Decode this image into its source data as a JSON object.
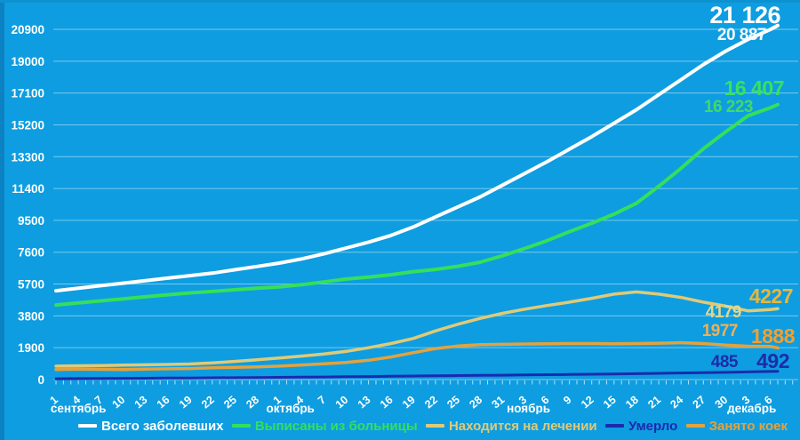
{
  "chart_data": {
    "type": "line",
    "title": "",
    "background_color": "#0e9de0",
    "gridlines": true,
    "legend_position": "bottom",
    "y_ticks": [
      0,
      1900,
      3800,
      5700,
      7600,
      9500,
      11400,
      13300,
      15200,
      17100,
      19000,
      20900
    ],
    "y_range": [
      0,
      20900
    ],
    "x_axis": {
      "tick_days": [
        {
          "day": 0,
          "label": "1"
        },
        {
          "day": 3,
          "label": "4"
        },
        {
          "day": 6,
          "label": "7"
        },
        {
          "day": 9,
          "label": "10"
        },
        {
          "day": 12,
          "label": "13"
        },
        {
          "day": 15,
          "label": "16"
        },
        {
          "day": 18,
          "label": "19"
        },
        {
          "day": 21,
          "label": "22"
        },
        {
          "day": 24,
          "label": "25"
        },
        {
          "day": 27,
          "label": "28"
        },
        {
          "day": 30,
          "label": "1"
        },
        {
          "day": 33,
          "label": "4"
        },
        {
          "day": 36,
          "label": "7"
        },
        {
          "day": 39,
          "label": "10"
        },
        {
          "day": 42,
          "label": "13"
        },
        {
          "day": 45,
          "label": "16"
        },
        {
          "day": 48,
          "label": "19"
        },
        {
          "day": 51,
          "label": "22"
        },
        {
          "day": 54,
          "label": "25"
        },
        {
          "day": 57,
          "label": "28"
        },
        {
          "day": 60,
          "label": "31"
        },
        {
          "day": 63,
          "label": "3"
        },
        {
          "day": 66,
          "label": "6"
        },
        {
          "day": 69,
          "label": "9"
        },
        {
          "day": 72,
          "label": "12"
        },
        {
          "day": 75,
          "label": "15"
        },
        {
          "day": 78,
          "label": "18"
        },
        {
          "day": 81,
          "label": "21"
        },
        {
          "day": 84,
          "label": "24"
        },
        {
          "day": 87,
          "label": "27"
        },
        {
          "day": 90,
          "label": "30"
        },
        {
          "day": 93,
          "label": "3"
        },
        {
          "day": 96,
          "label": "6"
        }
      ],
      "months": [
        {
          "label": "сентябрь",
          "day": 3
        },
        {
          "label": "октябрь",
          "day": 31.5
        },
        {
          "label": "ноябрь",
          "day": 63.5
        },
        {
          "label": "декабрь",
          "day": 93.5
        }
      ]
    },
    "days": [
      0,
      3,
      6,
      9,
      12,
      15,
      18,
      21,
      24,
      27,
      30,
      33,
      36,
      39,
      42,
      45,
      48,
      51,
      54,
      57,
      60,
      63,
      66,
      69,
      72,
      75,
      78,
      81,
      84,
      87,
      90,
      93,
      96,
      97
    ],
    "series": [
      {
        "id": "total",
        "name": "Всего заболевших",
        "color": "#ffffff",
        "line_width": 4,
        "current_label": "21 126",
        "previous_label": "20 887",
        "label_color_current": "#ffffff",
        "label_color_previous": "#f4fafd",
        "values": [
          5300,
          5450,
          5600,
          5750,
          5900,
          6050,
          6200,
          6350,
          6550,
          6750,
          6950,
          7200,
          7500,
          7850,
          8200,
          8600,
          9100,
          9700,
          10300,
          10900,
          11600,
          12300,
          13000,
          13750,
          14500,
          15300,
          16100,
          17000,
          17900,
          18800,
          19600,
          20300,
          20887,
          21126
        ]
      },
      {
        "id": "discharged",
        "name": "Выписаны из больницы",
        "color": "#35df5b",
        "line_width": 4,
        "current_label": "16 407",
        "previous_label": "16 223",
        "label_color_current": "#38e25e",
        "label_color_previous": "#43d966",
        "values": [
          4450,
          4573,
          4696,
          4818,
          4940,
          5062,
          5174,
          5256,
          5358,
          5449,
          5530,
          5658,
          5825,
          6002,
          6118,
          6254,
          6440,
          6575,
          6760,
          7000,
          7390,
          7825,
          8290,
          8825,
          9332,
          9870,
          10520,
          11530,
          12610,
          13770,
          14790,
          15745,
          16223,
          16407
        ]
      },
      {
        "id": "treated",
        "name": "Находится на лечении",
        "color": "#dfca78",
        "line_width": 3.5,
        "current_label": "4227",
        "previous_label": "4179",
        "label_color_current": "#e9b63a",
        "label_color_previous": "#e2d78e",
        "values": [
          800,
          820,
          840,
          860,
          880,
          900,
          930,
          990,
          1080,
          1180,
          1290,
          1400,
          1520,
          1680,
          1900,
          2150,
          2450,
          2900,
          3300,
          3650,
          3950,
          4200,
          4420,
          4620,
          4850,
          5100,
          5230,
          5100,
          4900,
          4620,
          4380,
          4100,
          4179,
          4227
        ]
      },
      {
        "id": "died",
        "name": "Умерло",
        "color": "#1b2aae",
        "line_width": 3,
        "current_label": "492",
        "previous_label": "485",
        "label_color_current": "#1d2ca8",
        "label_color_previous": "#1d2ca8",
        "values": [
          50,
          57,
          64,
          72,
          80,
          88,
          96,
          104,
          112,
          121,
          130,
          142,
          155,
          168,
          182,
          196,
          210,
          225,
          240,
          250,
          260,
          275,
          290,
          305,
          318,
          330,
          350,
          370,
          390,
          410,
          430,
          455,
          485,
          492
        ]
      },
      {
        "id": "beds",
        "name": "Занято коек",
        "color": "#e3a23d",
        "line_width": 3.5,
        "current_label": "1888",
        "previous_label": "1977",
        "label_color_current": "#f0a032",
        "label_color_previous": "#f0b054",
        "values": [
          600,
          620,
          610,
          600,
          620,
          640,
          660,
          700,
          730,
          760,
          800,
          870,
          940,
          1020,
          1150,
          1350,
          1600,
          1850,
          2000,
          2080,
          2100,
          2120,
          2130,
          2150,
          2150,
          2130,
          2150,
          2170,
          2200,
          2150,
          2060,
          1990,
          1977,
          1888
        ]
      }
    ]
  }
}
